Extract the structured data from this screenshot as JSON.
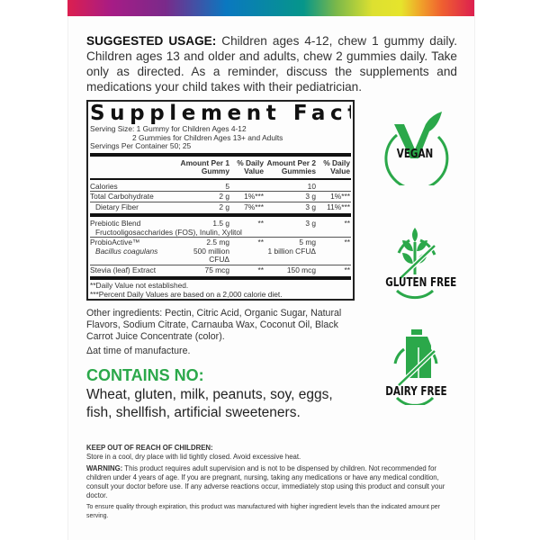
{
  "usage": {
    "heading": "SUGGESTED USAGE:",
    "text": " Children ages 4-12, chew 1 gummy daily. Children ages 13 and older and adults, chew 2 gummies daily. Take only as directed. As a reminder, discuss the supplements and medications your child takes with their pediatrician."
  },
  "facts": {
    "title": "Supplement Facts",
    "serving_size": "Serving Size: 1 Gummy for Children Ages 4-12",
    "serving_size_2": "2 Gummies for Children Ages 13+ and Adults",
    "servings": "Servings Per Container 50; 25",
    "headers": [
      "",
      "Amount Per 1 Gummy",
      "% Daily Value",
      "Amount Per 2 Gummies",
      "% Daily Value"
    ],
    "rows": [
      [
        "Calories",
        "5",
        "",
        "10",
        ""
      ],
      [
        "Total Carbohydrate",
        "2 g",
        "1%***",
        "3 g",
        "1%***"
      ],
      [
        "Dietary Fiber",
        "2 g",
        "7%***",
        "3 g",
        "11%***"
      ],
      [
        "Prebiotic Blend",
        "1.5 g",
        "**",
        "3 g",
        "**"
      ],
      [
        "Fructooligosaccharides (FOS), Inulin, Xylitol",
        "",
        "",
        "",
        ""
      ],
      [
        "ProbioActive™",
        "2.5 mg",
        "**",
        "5 mg",
        "**"
      ],
      [
        "Bacillus coagulans",
        "500 million CFUΔ",
        "",
        "1 billion CFUΔ",
        ""
      ],
      [
        "Stevia (leaf) Extract",
        "75 mcg",
        "**",
        "150 mcg",
        "**"
      ]
    ],
    "footnote1": "**Daily Value not established.",
    "footnote2": "***Percent Daily Values are based on a 2,000 calorie diet."
  },
  "other": {
    "ingredients": "Other ingredients: Pectin, Citric Acid, Organic Sugar, Natural Flavors, Sodium Citrate, Carnauba Wax, Coconut Oil, Black Carrot Juice Concentrate (color).",
    "note": "Δat time of manufacture."
  },
  "contains": {
    "heading": "CONTAINS NO:",
    "list": "Wheat, gluten, milk, peanuts, soy, eggs, fish, shellfish, artificial sweeteners."
  },
  "badges": [
    "VEGAN",
    "GLUTEN FREE",
    "DAIRY FREE"
  ],
  "fine": {
    "keep_heading": "KEEP OUT OF REACH OF CHILDREN:",
    "storage": "Store in a cool, dry place with lid tightly closed. Avoid excessive heat.",
    "warning_heading": "WARNING:",
    "warning": " This product requires adult supervision and is not to be dispensed by children. Not recommended for children under 4 years of age. If you are pregnant, nursing, taking any medications or have any medical condition, consult your doctor before use. If any adverse reactions occur, immediately stop using this product and consult your doctor.",
    "quality": "To ensure quality through expiration, this product was manufactured with higher ingredient levels than the indicated amount per serving."
  },
  "colors": {
    "green": "#2ba84a"
  }
}
